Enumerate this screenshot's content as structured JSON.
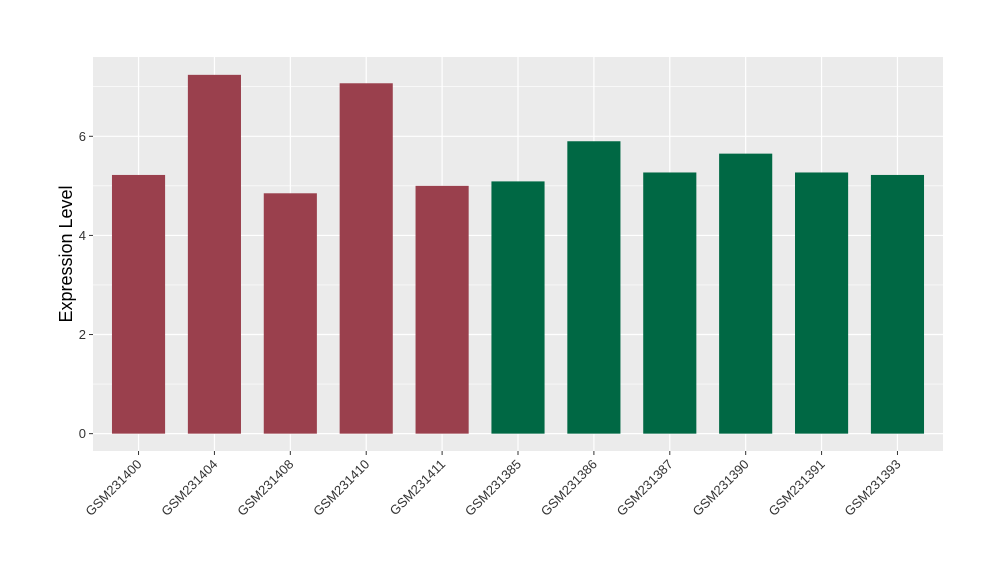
{
  "chart_data": {
    "type": "bar",
    "title": "",
    "xlabel": "",
    "ylabel": "Expression Level",
    "ylim": [
      -0.35,
      7.6
    ],
    "yticks": [
      0,
      2,
      4,
      6
    ],
    "grid": true,
    "categories": [
      "GSM231400",
      "GSM231404",
      "GSM231408",
      "GSM231410",
      "GSM231411",
      "GSM231385",
      "GSM231386",
      "GSM231387",
      "GSM231390",
      "GSM231391",
      "GSM231393"
    ],
    "values": [
      5.22,
      7.24,
      4.85,
      7.07,
      5.0,
      5.09,
      5.9,
      5.27,
      5.65,
      5.27,
      5.22
    ],
    "groups": [
      "a",
      "a",
      "a",
      "a",
      "a",
      "b",
      "b",
      "b",
      "b",
      "b",
      "b"
    ],
    "group_colors": {
      "a": "#9a404d",
      "b": "#006844"
    },
    "panel_color": "#ebebeb",
    "grid_color": "#ffffff"
  }
}
